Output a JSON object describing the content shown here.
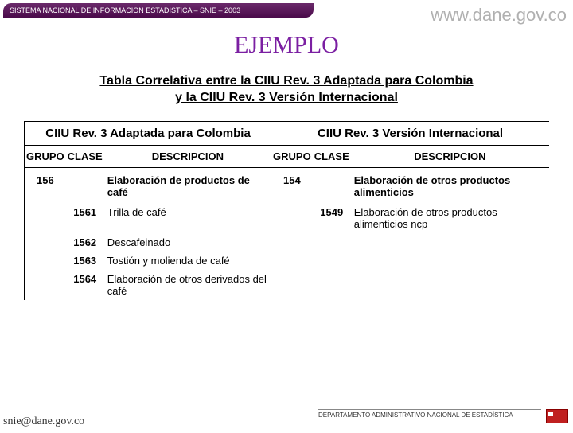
{
  "header": {
    "system": "SISTEMA NACIONAL DE INFORMACION ESTADISTICA – SNIE – 2003",
    "url": "www.dane.gov.co"
  },
  "title": "EJEMPLO",
  "subtitle_line1": "Tabla Correlativa entre la CIIU Rev. 3 Adaptada para Colombia",
  "subtitle_line2": "y la CIIU Rev. 3 Versión Internacional",
  "section_left": "CIIU Rev. 3 Adaptada para Colombia",
  "section_right": "CIIU Rev. 3 Versión Internacional",
  "cols": {
    "grupo": "GRUPO",
    "clase": "CLASE",
    "desc": "DESCRIPCION"
  },
  "left": {
    "grupo": "156",
    "grupo_desc": "Elaboración de productos de café",
    "rows": [
      {
        "clase": "1561",
        "desc": "Trilla de café"
      },
      {
        "clase": "1562",
        "desc": "Descafeinado"
      },
      {
        "clase": "1563",
        "desc": "Tostión y molienda de café"
      },
      {
        "clase": "1564",
        "desc": "Elaboración de otros derivados del café"
      }
    ]
  },
  "right": {
    "grupo": "154",
    "grupo_desc": "Elaboración de otros productos alimenticios",
    "rows": [
      {
        "clase": "1549",
        "desc": "Elaboración de otros productos alimenticios ncp"
      }
    ]
  },
  "footer": {
    "email": "snie@dane.gov.co",
    "dept": "DEPARTAMENTO ADMINISTRATIVO NACIONAL DE ESTADÍSTICA"
  }
}
